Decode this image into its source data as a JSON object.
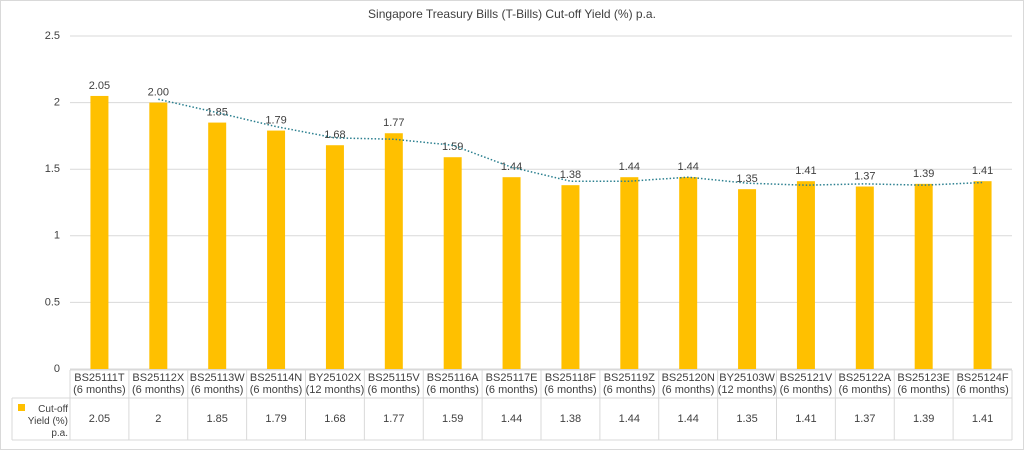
{
  "chart_data": {
    "type": "bar",
    "title": "Singapore Treasury Bills (T-Bills) Cut-off Yield (%) p.a.",
    "categories": [
      "BS25111T (6 months)",
      "BS25112X (6 months)",
      "BS25113W (6 months)",
      "BS25114N (6 months)",
      "BY25102X (12 months)",
      "BS25115V (6 months)",
      "BS25116A (6 months)",
      "BS25117E (6 months)",
      "BS25118F (6 months)",
      "BS25119Z (6 months)",
      "BS25120N (6 months)",
      "BY25103W (12 months)",
      "BS25121V (6 months)",
      "BS25122A (6 months)",
      "BS25123E (6 months)",
      "BS25124F (6 months)"
    ],
    "series": [
      {
        "name": "Cut-off Yield (%) p.a.",
        "color": "#ffc000",
        "values": [
          2.05,
          2,
          1.85,
          1.79,
          1.68,
          1.77,
          1.59,
          1.44,
          1.38,
          1.44,
          1.44,
          1.35,
          1.41,
          1.37,
          1.39,
          1.41
        ],
        "value_labels": [
          "2.05",
          "2.00",
          "1.85",
          "1.79",
          "1.68",
          "1.77",
          "1.59",
          "1.44",
          "1.38",
          "1.44",
          "1.44",
          "1.35",
          "1.41",
          "1.37",
          "1.39",
          "1.41"
        ]
      }
    ],
    "trendline": {
      "type": "moving_average",
      "period": 2,
      "color": "#2a7f8f"
    },
    "ylim": [
      0,
      2.5
    ],
    "yticks": [
      0,
      0.5,
      1,
      1.5,
      2,
      2.5
    ],
    "grid": true,
    "legend": "data-table"
  }
}
